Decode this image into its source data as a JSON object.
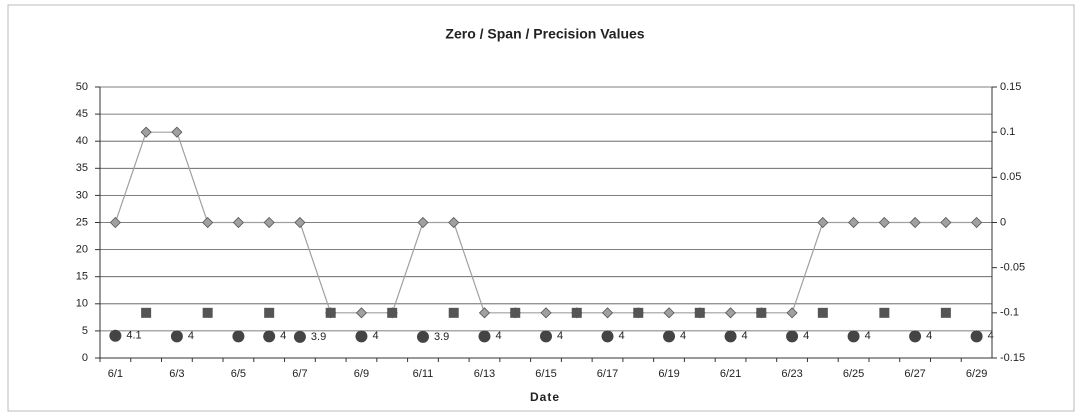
{
  "chart_data": {
    "type": "line",
    "title": "Zero / Span / Precision Values",
    "x_label": "Date",
    "categories": [
      "6/1",
      null,
      "6/3",
      null,
      "6/5",
      null,
      "6/7",
      null,
      "6/9",
      null,
      "6/11",
      null,
      "6/13",
      null,
      "6/15",
      null,
      "6/17",
      null,
      "6/19",
      null,
      "6/21",
      null,
      "6/23",
      null,
      "6/25",
      null,
      "6/27",
      null,
      "6/29"
    ],
    "ylim": [
      0,
      50
    ],
    "yticks": [
      0,
      5,
      10,
      15,
      20,
      25,
      30,
      35,
      40,
      45,
      50
    ],
    "y2lim": [
      -0.15,
      0.15
    ],
    "y2ticks": [
      0.15,
      0.1,
      0.05,
      0,
      -0.05,
      -0.1,
      -0.15
    ],
    "grid": true,
    "series": [
      {
        "color": "#a0a0a0",
        "marker": "diamond",
        "line": true,
        "axis": "y2",
        "values": [
          0,
          0.1,
          0.1,
          0,
          0,
          0,
          0,
          -0.1,
          -0.1,
          -0.1,
          0,
          0,
          -0.1,
          -0.1,
          -0.1,
          -0.1,
          -0.1,
          -0.1,
          -0.1,
          -0.1,
          -0.1,
          -0.1,
          -0.1,
          0,
          0,
          0,
          0,
          0,
          0
        ]
      },
      {
        "color": "#555555",
        "marker": "square",
        "line": false,
        "axis": "y2",
        "values": [
          null,
          -0.1,
          null,
          -0.1,
          null,
          -0.1,
          null,
          -0.1,
          null,
          -0.1,
          null,
          -0.1,
          null,
          -0.1,
          null,
          -0.1,
          null,
          -0.1,
          null,
          -0.1,
          null,
          -0.1,
          null,
          -0.1,
          null,
          -0.1,
          null,
          -0.1,
          null
        ]
      },
      {
        "color": "#444444",
        "marker": "circle",
        "line": false,
        "values": [
          4.1,
          null,
          4,
          null,
          4,
          4,
          3.9,
          null,
          4,
          null,
          3.9,
          null,
          4,
          null,
          4,
          null,
          4,
          null,
          4,
          null,
          4,
          null,
          4,
          null,
          4,
          null,
          4,
          null,
          4
        ],
        "value_labels": [
          "4.1",
          null,
          "4",
          null,
          null,
          "4",
          "3.9",
          null,
          "4",
          null,
          "3.9",
          null,
          "4",
          null,
          "4",
          null,
          "4",
          null,
          "4",
          null,
          "4",
          null,
          "4",
          null,
          "4",
          null,
          "4",
          null,
          "4"
        ]
      }
    ]
  }
}
